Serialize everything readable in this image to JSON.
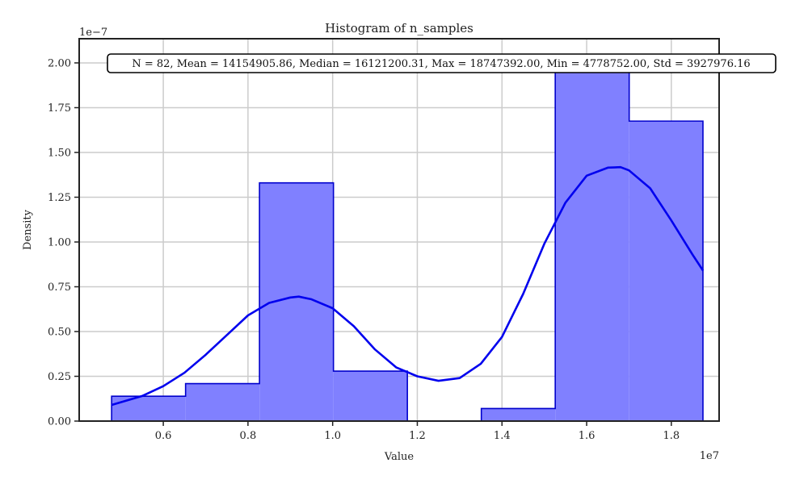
{
  "chart_data": {
    "type": "histogram",
    "title": "Histogram of n_samples",
    "xlabel": "Value",
    "ylabel": "Density",
    "x_scale_label": "1e7",
    "y_scale_label": "1e−7",
    "xlim": [
      0.4013,
      1.9129
    ],
    "ylim": [
      0.0,
      2.135
    ],
    "x_ticks": [
      0.6,
      0.8,
      1.0,
      1.2,
      1.4,
      1.6,
      1.8
    ],
    "x_tick_labels": [
      "0.6",
      "0.8",
      "1.0",
      "1.2",
      "1.4",
      "1.6",
      "1.8"
    ],
    "y_ticks": [
      0.0,
      0.25,
      0.5,
      0.75,
      1.0,
      1.25,
      1.5,
      1.75,
      2.0
    ],
    "y_tick_labels": [
      "0.00",
      "0.25",
      "0.50",
      "0.75",
      "1.00",
      "1.25",
      "1.50",
      "1.75",
      "2.00"
    ],
    "grid": true,
    "bins": [
      {
        "x0": 0.4779,
        "x1": 0.6526,
        "density": 0.139
      },
      {
        "x0": 0.6526,
        "x1": 0.8272,
        "density": 0.209
      },
      {
        "x0": 0.8272,
        "x1": 1.0019,
        "density": 1.33
      },
      {
        "x0": 1.0019,
        "x1": 1.1765,
        "density": 0.279
      },
      {
        "x0": 1.1765,
        "x1": 1.3512,
        "density": 0.0
      },
      {
        "x0": 1.3512,
        "x1": 1.5258,
        "density": 0.07
      },
      {
        "x0": 1.5258,
        "x1": 1.7005,
        "density": 1.95
      },
      {
        "x0": 1.7005,
        "x1": 1.8747,
        "density": 1.675
      }
    ],
    "kde": {
      "x": [
        0.478,
        0.55,
        0.6,
        0.65,
        0.7,
        0.75,
        0.8,
        0.85,
        0.9,
        0.92,
        0.95,
        1.0,
        1.05,
        1.1,
        1.15,
        1.2,
        1.25,
        1.3,
        1.35,
        1.4,
        1.45,
        1.5,
        1.55,
        1.6,
        1.65,
        1.68,
        1.7,
        1.75,
        1.8,
        1.85,
        1.875
      ],
      "y": [
        0.09,
        0.14,
        0.195,
        0.27,
        0.37,
        0.48,
        0.59,
        0.66,
        0.69,
        0.695,
        0.68,
        0.63,
        0.53,
        0.4,
        0.3,
        0.25,
        0.225,
        0.24,
        0.32,
        0.47,
        0.71,
        0.99,
        1.22,
        1.37,
        1.415,
        1.418,
        1.4,
        1.3,
        1.12,
        0.93,
        0.84
      ]
    },
    "stats_text": "N = 82, Mean = 14154905.86, Median = 16121200.31, Max = 18747392.00, Min = 4778752.00, Std = 3927976.16",
    "colors": {
      "bar_fill": "#8080ff",
      "bar_edge": "#0000cc",
      "kde_line": "#0000ee",
      "grid": "#cccccc",
      "axes": "#222222"
    }
  }
}
